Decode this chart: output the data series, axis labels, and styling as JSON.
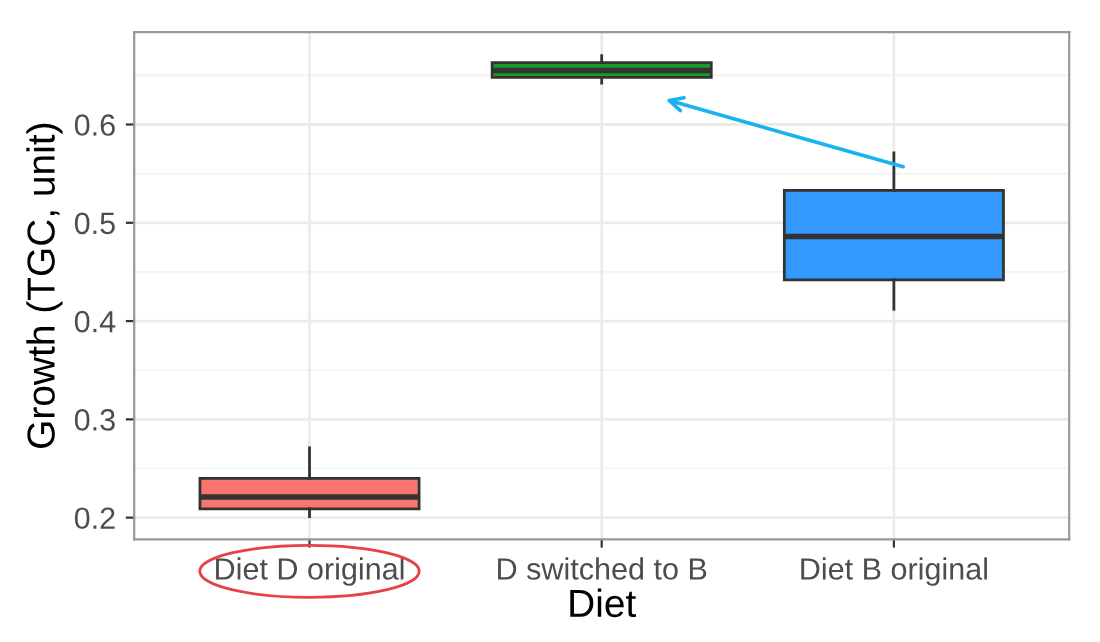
{
  "chart_data": {
    "type": "box",
    "xlabel": "Diet",
    "ylabel": "Growth (TGC, unit)",
    "categories": [
      "Diet D original",
      "D switched to B",
      "Diet B original"
    ],
    "colors": [
      "#f8766d",
      "#1a9a2a",
      "#3399ff"
    ],
    "boxes": [
      {
        "low": 0.201,
        "q1": 0.209,
        "median": 0.221,
        "q3": 0.24,
        "high": 0.271
      },
      {
        "low": 0.642,
        "q1": 0.648,
        "median": 0.655,
        "q3": 0.663,
        "high": 0.67
      },
      {
        "low": 0.412,
        "q1": 0.442,
        "median": 0.486,
        "q3": 0.533,
        "high": 0.571
      }
    ],
    "ylim": [
      0.178,
      0.694
    ],
    "yticks": [
      0.2,
      0.3,
      0.4,
      0.5,
      0.6
    ],
    "grid": true,
    "legend": false
  }
}
